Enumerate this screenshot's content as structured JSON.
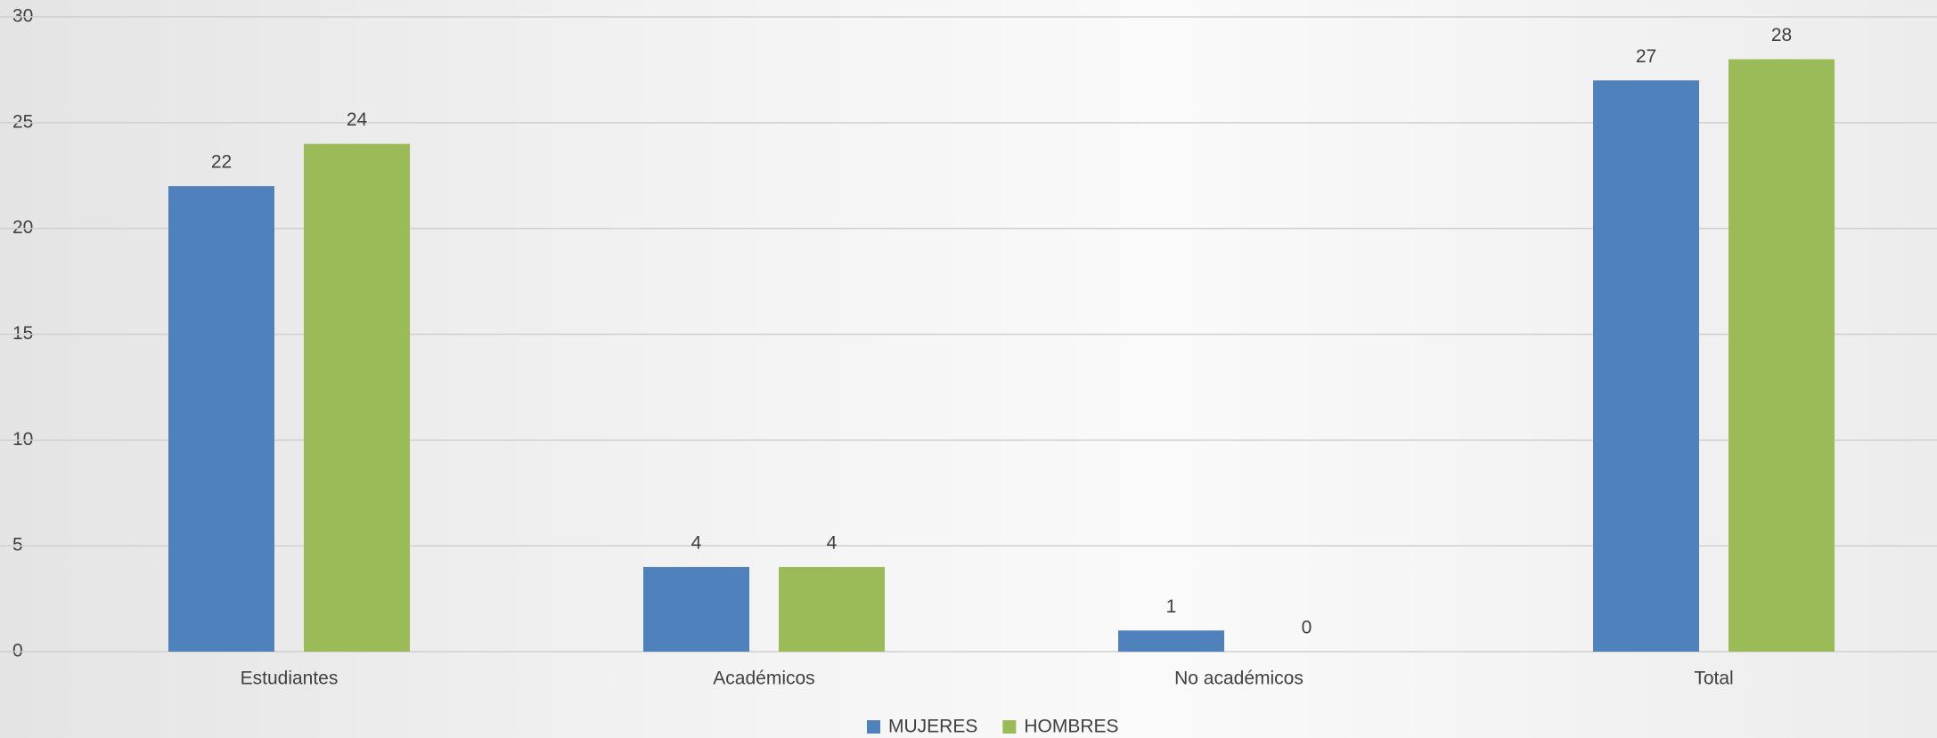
{
  "chart_data": {
    "type": "bar",
    "categories": [
      "Estudiantes",
      "Académicos",
      "No académicos",
      "Total"
    ],
    "series": [
      {
        "name": "MUJERES",
        "color": "#4f81bd",
        "values": [
          22,
          4,
          1,
          27
        ]
      },
      {
        "name": "HOMBRES",
        "color": "#9bbb59",
        "values": [
          24,
          4,
          0,
          28
        ]
      }
    ],
    "ylim": [
      0,
      30
    ],
    "yticks": [
      0,
      5,
      10,
      15,
      20,
      25,
      30
    ],
    "grid": true,
    "legend": "bottom"
  }
}
